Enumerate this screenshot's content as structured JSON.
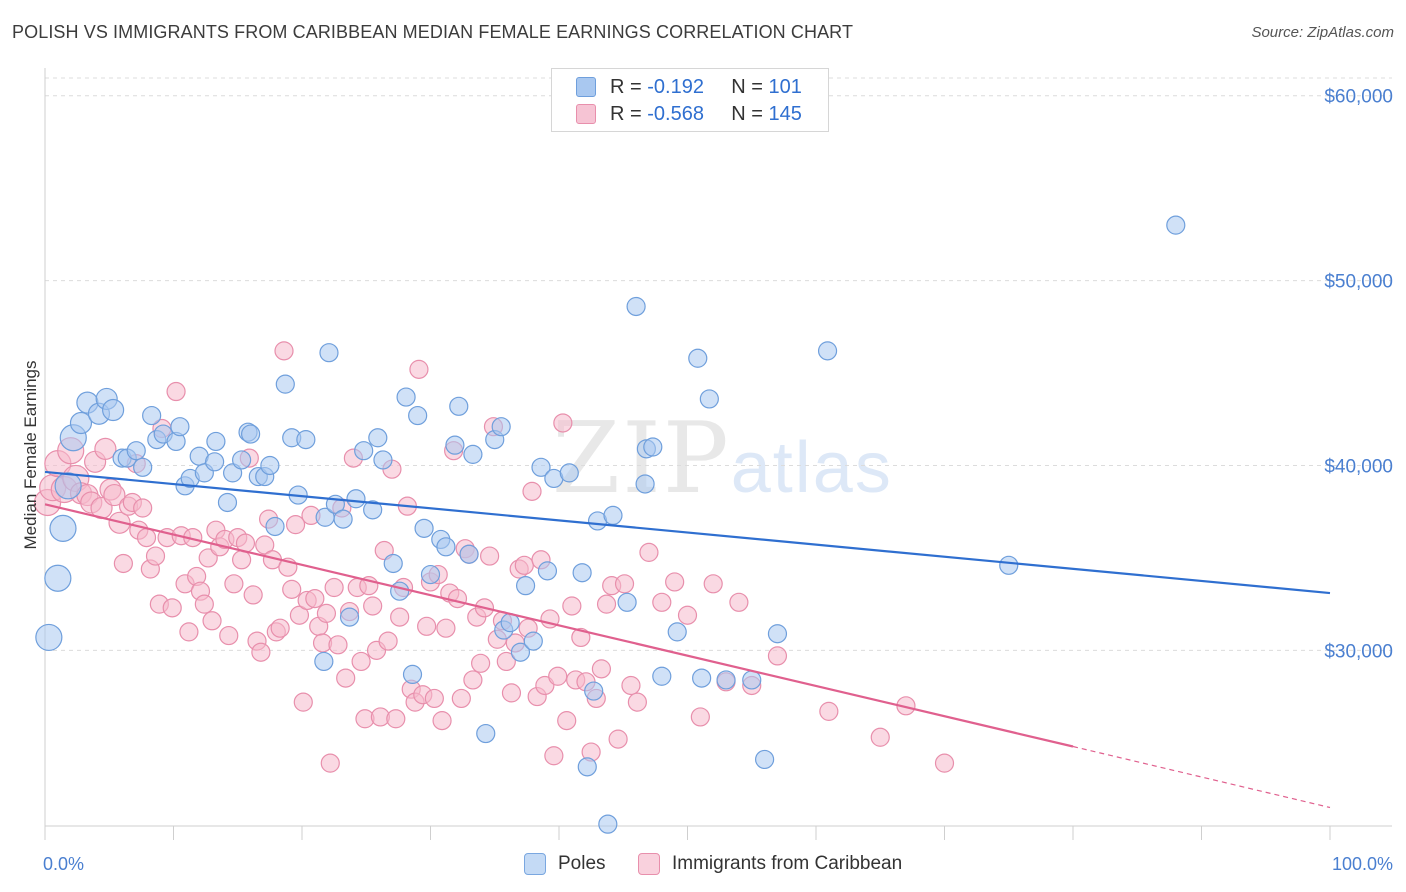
{
  "title": "POLISH VS IMMIGRANTS FROM CARIBBEAN MEDIAN FEMALE EARNINGS CORRELATION CHART",
  "source": "Source: ZipAtlas.com",
  "watermark": {
    "zip": "ZIP",
    "atlas": "atlas"
  },
  "legend": {
    "rows": [
      {
        "r_label": "R =",
        "r_value": "-0.192",
        "n_label": "N =",
        "n_value": "101"
      },
      {
        "r_label": "R =",
        "r_value": "-0.568",
        "n_label": "N =",
        "n_value": "145"
      }
    ]
  },
  "bottom_legend": {
    "poles": "Poles",
    "caribbean": "Immigrants from Caribbean"
  },
  "colors": {
    "poles_fill": "#a9c8f0",
    "poles_stroke": "#6f9fdc",
    "poles_line": "#2f6fd0",
    "carib_fill": "#f6b9cc",
    "carib_stroke": "#e88fac",
    "carib_line": "#e0608e",
    "tick_text": "#4a7fd0",
    "grid": "#dcdcdc"
  },
  "chart_data": {
    "type": "scatter",
    "title": "POLISH VS IMMIGRANTS FROM CARIBBEAN MEDIAN FEMALE EARNINGS CORRELATION CHART",
    "xlabel": "",
    "ylabel": "Median Female Earnings",
    "x_tick_labels": [
      "0.0%",
      "100.0%"
    ],
    "y_tick_labels": [
      "$30,000",
      "$40,000",
      "$50,000",
      "$60,000"
    ],
    "y_ticks": [
      30000,
      40000,
      50000,
      60000
    ],
    "xlim": [
      0,
      100
    ],
    "ylim": [
      20500,
      61500
    ],
    "grid": true,
    "legend_position": "top-center",
    "series": [
      {
        "name": "Poles",
        "R": -0.192,
        "N": 101,
        "trend": {
          "x": [
            0,
            100
          ],
          "y": [
            39650,
            33100
          ]
        },
        "points": [
          [
            0.3,
            30700
          ],
          [
            1.0,
            33900
          ],
          [
            1.4,
            36600
          ],
          [
            1.8,
            38900
          ],
          [
            2.2,
            41500
          ],
          [
            2.8,
            42300
          ],
          [
            3.3,
            43400
          ],
          [
            4.2,
            42800
          ],
          [
            4.8,
            43600
          ],
          [
            5.3,
            43000
          ],
          [
            6.0,
            40400
          ],
          [
            6.4,
            40400
          ],
          [
            7.1,
            40800
          ],
          [
            7.6,
            39900
          ],
          [
            8.3,
            42700
          ],
          [
            8.7,
            41400
          ],
          [
            9.2,
            41700
          ],
          [
            10.2,
            41300
          ],
          [
            10.5,
            42100
          ],
          [
            10.9,
            38900
          ],
          [
            11.3,
            39300
          ],
          [
            12.0,
            40500
          ],
          [
            12.4,
            39600
          ],
          [
            13.2,
            40200
          ],
          [
            13.3,
            41300
          ],
          [
            14.2,
            38000
          ],
          [
            14.6,
            39600
          ],
          [
            15.3,
            40300
          ],
          [
            15.8,
            41800
          ],
          [
            16.0,
            41700
          ],
          [
            16.6,
            39400
          ],
          [
            17.1,
            39400
          ],
          [
            17.5,
            40000
          ],
          [
            17.9,
            36700
          ],
          [
            18.7,
            44400
          ],
          [
            19.2,
            41500
          ],
          [
            19.7,
            38400
          ],
          [
            20.3,
            41400
          ],
          [
            21.7,
            29400
          ],
          [
            21.8,
            37200
          ],
          [
            22.1,
            46100
          ],
          [
            22.6,
            37900
          ],
          [
            23.2,
            37100
          ],
          [
            23.7,
            31800
          ],
          [
            24.2,
            38200
          ],
          [
            24.8,
            40800
          ],
          [
            25.5,
            37600
          ],
          [
            25.9,
            41500
          ],
          [
            26.3,
            40300
          ],
          [
            27.1,
            34700
          ],
          [
            27.6,
            33200
          ],
          [
            28.1,
            43700
          ],
          [
            28.6,
            28700
          ],
          [
            29.0,
            42700
          ],
          [
            29.5,
            36600
          ],
          [
            30.0,
            34100
          ],
          [
            30.8,
            36000
          ],
          [
            31.2,
            35600
          ],
          [
            31.9,
            41100
          ],
          [
            32.2,
            43200
          ],
          [
            33.0,
            35200
          ],
          [
            33.3,
            40600
          ],
          [
            34.3,
            25500
          ],
          [
            35.0,
            41400
          ],
          [
            35.5,
            42100
          ],
          [
            35.7,
            31100
          ],
          [
            36.2,
            31500
          ],
          [
            37.0,
            29900
          ],
          [
            37.4,
            33500
          ],
          [
            38.0,
            30500
          ],
          [
            38.6,
            39900
          ],
          [
            39.1,
            34300
          ],
          [
            39.6,
            39300
          ],
          [
            40.8,
            39600
          ],
          [
            41.8,
            34200
          ],
          [
            42.2,
            23700
          ],
          [
            42.7,
            27800
          ],
          [
            43.0,
            37000
          ],
          [
            43.8,
            20600
          ],
          [
            44.2,
            37300
          ],
          [
            45.3,
            32600
          ],
          [
            46.0,
            48600
          ],
          [
            46.8,
            40900
          ],
          [
            46.7,
            39000
          ],
          [
            47.3,
            41000
          ],
          [
            48.0,
            28600
          ],
          [
            49.2,
            31000
          ],
          [
            50.8,
            45800
          ],
          [
            51.1,
            28500
          ],
          [
            51.7,
            43600
          ],
          [
            53.0,
            28400
          ],
          [
            55.0,
            28400
          ],
          [
            56.0,
            24100
          ],
          [
            57.0,
            30900
          ],
          [
            60.9,
            46200
          ],
          [
            75.0,
            34600
          ],
          [
            88.0,
            53000
          ]
        ]
      },
      {
        "name": "Immigrants from Caribbean",
        "R": -0.568,
        "N": 145,
        "trend": {
          "x": [
            0,
            80
          ],
          "y": [
            37900,
            24800
          ]
        },
        "trend_dashed": {
          "x": [
            80,
            100
          ],
          "y": [
            24800,
            21500
          ]
        },
        "points": [
          [
            0.2,
            38000
          ],
          [
            0.6,
            38800
          ],
          [
            1.0,
            40100
          ],
          [
            1.5,
            38700
          ],
          [
            2.0,
            40800
          ],
          [
            2.4,
            39300
          ],
          [
            2.8,
            38500
          ],
          [
            3.3,
            38400
          ],
          [
            3.6,
            38000
          ],
          [
            3.9,
            40200
          ],
          [
            4.4,
            37700
          ],
          [
            4.7,
            40900
          ],
          [
            5.1,
            38700
          ],
          [
            5.4,
            38400
          ],
          [
            5.8,
            36900
          ],
          [
            6.1,
            34700
          ],
          [
            6.5,
            37800
          ],
          [
            6.8,
            38000
          ],
          [
            7.1,
            40100
          ],
          [
            7.3,
            36500
          ],
          [
            7.6,
            37700
          ],
          [
            7.9,
            36100
          ],
          [
            8.2,
            34400
          ],
          [
            8.6,
            35100
          ],
          [
            8.9,
            32500
          ],
          [
            9.1,
            42000
          ],
          [
            9.5,
            36100
          ],
          [
            9.9,
            32300
          ],
          [
            10.2,
            44000
          ],
          [
            10.6,
            36200
          ],
          [
            10.9,
            33600
          ],
          [
            11.2,
            31000
          ],
          [
            11.5,
            36100
          ],
          [
            11.8,
            34000
          ],
          [
            12.1,
            33200
          ],
          [
            12.4,
            32500
          ],
          [
            12.7,
            35000
          ],
          [
            13.0,
            31600
          ],
          [
            13.3,
            36500
          ],
          [
            13.6,
            35600
          ],
          [
            14.0,
            36000
          ],
          [
            14.3,
            30800
          ],
          [
            14.7,
            33600
          ],
          [
            15.0,
            36100
          ],
          [
            15.3,
            34900
          ],
          [
            15.6,
            35800
          ],
          [
            15.9,
            40400
          ],
          [
            16.2,
            33000
          ],
          [
            16.5,
            30500
          ],
          [
            16.8,
            29900
          ],
          [
            17.1,
            35700
          ],
          [
            17.4,
            37100
          ],
          [
            17.7,
            34900
          ],
          [
            18.0,
            31000
          ],
          [
            18.3,
            31200
          ],
          [
            18.6,
            46200
          ],
          [
            18.9,
            34500
          ],
          [
            19.2,
            33300
          ],
          [
            19.5,
            36800
          ],
          [
            19.8,
            31900
          ],
          [
            20.1,
            27200
          ],
          [
            20.4,
            32700
          ],
          [
            20.7,
            37300
          ],
          [
            21.0,
            32800
          ],
          [
            21.3,
            31300
          ],
          [
            21.6,
            30400
          ],
          [
            21.9,
            32000
          ],
          [
            22.2,
            23900
          ],
          [
            22.5,
            33400
          ],
          [
            22.8,
            30300
          ],
          [
            23.1,
            37700
          ],
          [
            23.4,
            28500
          ],
          [
            23.7,
            32100
          ],
          [
            24.0,
            40400
          ],
          [
            24.3,
            33400
          ],
          [
            24.6,
            29400
          ],
          [
            24.9,
            26300
          ],
          [
            25.2,
            33500
          ],
          [
            25.5,
            32400
          ],
          [
            25.8,
            30000
          ],
          [
            26.1,
            26400
          ],
          [
            26.4,
            35400
          ],
          [
            26.7,
            30500
          ],
          [
            27.0,
            39800
          ],
          [
            27.3,
            26300
          ],
          [
            27.6,
            31800
          ],
          [
            27.9,
            33400
          ],
          [
            28.2,
            37800
          ],
          [
            28.5,
            27900
          ],
          [
            28.8,
            27200
          ],
          [
            29.1,
            45200
          ],
          [
            29.4,
            27600
          ],
          [
            29.7,
            31300
          ],
          [
            30.0,
            33700
          ],
          [
            30.3,
            27400
          ],
          [
            30.6,
            34100
          ],
          [
            30.9,
            26200
          ],
          [
            31.2,
            31200
          ],
          [
            31.5,
            33100
          ],
          [
            31.8,
            40800
          ],
          [
            32.1,
            32800
          ],
          [
            32.4,
            27400
          ],
          [
            32.7,
            35500
          ],
          [
            33.0,
            35200
          ],
          [
            33.3,
            28400
          ],
          [
            33.6,
            31800
          ],
          [
            33.9,
            29300
          ],
          [
            34.2,
            32300
          ],
          [
            34.6,
            35100
          ],
          [
            34.9,
            42100
          ],
          [
            35.2,
            30600
          ],
          [
            35.6,
            31600
          ],
          [
            35.9,
            29400
          ],
          [
            36.3,
            27700
          ],
          [
            36.6,
            30400
          ],
          [
            36.9,
            34400
          ],
          [
            37.3,
            34600
          ],
          [
            37.6,
            31200
          ],
          [
            37.9,
            38600
          ],
          [
            38.3,
            27500
          ],
          [
            38.6,
            34900
          ],
          [
            38.9,
            28100
          ],
          [
            39.3,
            31700
          ],
          [
            39.6,
            24300
          ],
          [
            39.9,
            28600
          ],
          [
            40.3,
            42300
          ],
          [
            40.6,
            26200
          ],
          [
            41.0,
            32400
          ],
          [
            41.3,
            28400
          ],
          [
            41.7,
            30700
          ],
          [
            42.1,
            28300
          ],
          [
            42.5,
            24500
          ],
          [
            42.9,
            27400
          ],
          [
            43.3,
            29000
          ],
          [
            43.7,
            32500
          ],
          [
            44.1,
            33500
          ],
          [
            44.6,
            25200
          ],
          [
            45.1,
            33600
          ],
          [
            45.6,
            28100
          ],
          [
            46.1,
            27200
          ],
          [
            47.0,
            35300
          ],
          [
            48.0,
            32600
          ],
          [
            49.0,
            33700
          ],
          [
            50.0,
            31900
          ],
          [
            51.0,
            26400
          ],
          [
            52.0,
            33600
          ],
          [
            53.0,
            28300
          ],
          [
            54.0,
            32600
          ],
          [
            55.0,
            28100
          ],
          [
            57.0,
            29700
          ],
          [
            61.0,
            26700
          ],
          [
            65.0,
            25300
          ],
          [
            67.0,
            27000
          ],
          [
            70.0,
            23900
          ]
        ]
      }
    ]
  }
}
